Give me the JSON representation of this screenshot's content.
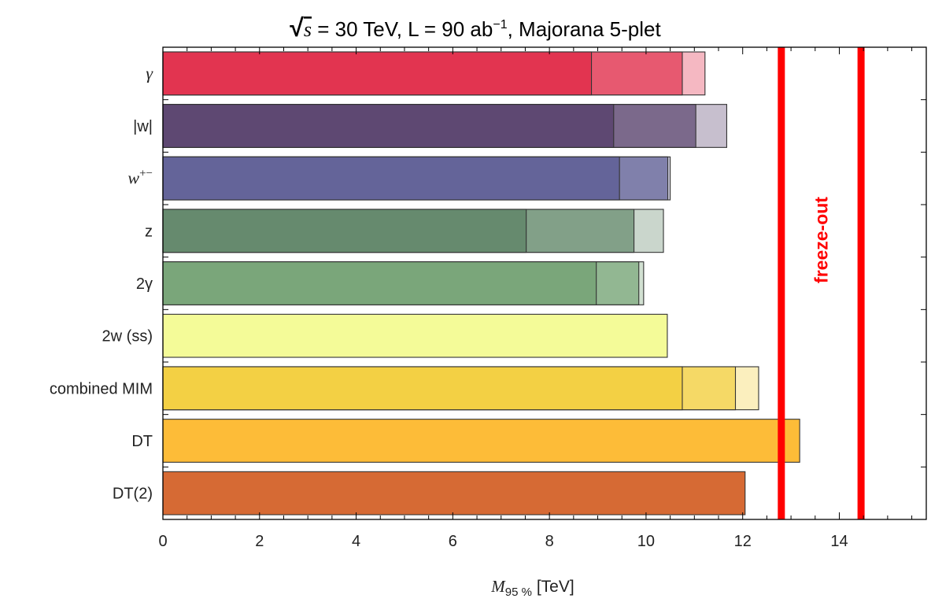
{
  "chart_data": {
    "type": "bar",
    "orientation": "horizontal",
    "title": {
      "sqrt_symbol": "√",
      "s": "s",
      "part1": " = 30 TeV, L = 90 ab",
      "exponent": "−1",
      "part2": ", Majorana  5-plet"
    },
    "xlabel": {
      "M": "M",
      "sub": "95 %",
      "rest": " [TeV]"
    },
    "xlim": [
      0,
      15.8
    ],
    "xticks": [
      0,
      2,
      4,
      6,
      8,
      10,
      12,
      14
    ],
    "categories": [
      {
        "label": "γ",
        "italic": true,
        "values": [
          8.87,
          10.75,
          11.22
        ],
        "color": "#e23450"
      },
      {
        "label": "|w|",
        "italic": false,
        "values": [
          9.33,
          11.03,
          11.67
        ],
        "color": "#5e4872"
      },
      {
        "label": "w",
        "sup": "+−",
        "italic": true,
        "values": [
          9.45,
          10.45,
          10.5
        ],
        "color": "#646499"
      },
      {
        "label": "z",
        "italic": false,
        "values": [
          7.52,
          9.75,
          10.36
        ],
        "color": "#668a6e"
      },
      {
        "label": "2γ",
        "italic": false,
        "values": [
          8.97,
          9.85,
          9.95
        ],
        "color": "#7aa67a"
      },
      {
        "label": "2w (ss)",
        "italic": false,
        "values": [
          10.44
        ],
        "color": "#f4fb98"
      },
      {
        "label": "combined MIM",
        "italic": false,
        "values": [
          10.75,
          11.85,
          12.33
        ],
        "color": "#f3d044"
      },
      {
        "label": "DT",
        "italic": false,
        "values": [
          13.18
        ],
        "color": "#fdbc38"
      },
      {
        "label": "DT(2)",
        "italic": false,
        "values": [
          12.05
        ],
        "color": "#d66a34"
      }
    ],
    "band_opacities": [
      1.0,
      0.72,
      0.35
    ],
    "freeze_out": {
      "label": "freeze-out",
      "values": [
        12.8,
        14.45
      ],
      "color": "#ff0000"
    }
  }
}
